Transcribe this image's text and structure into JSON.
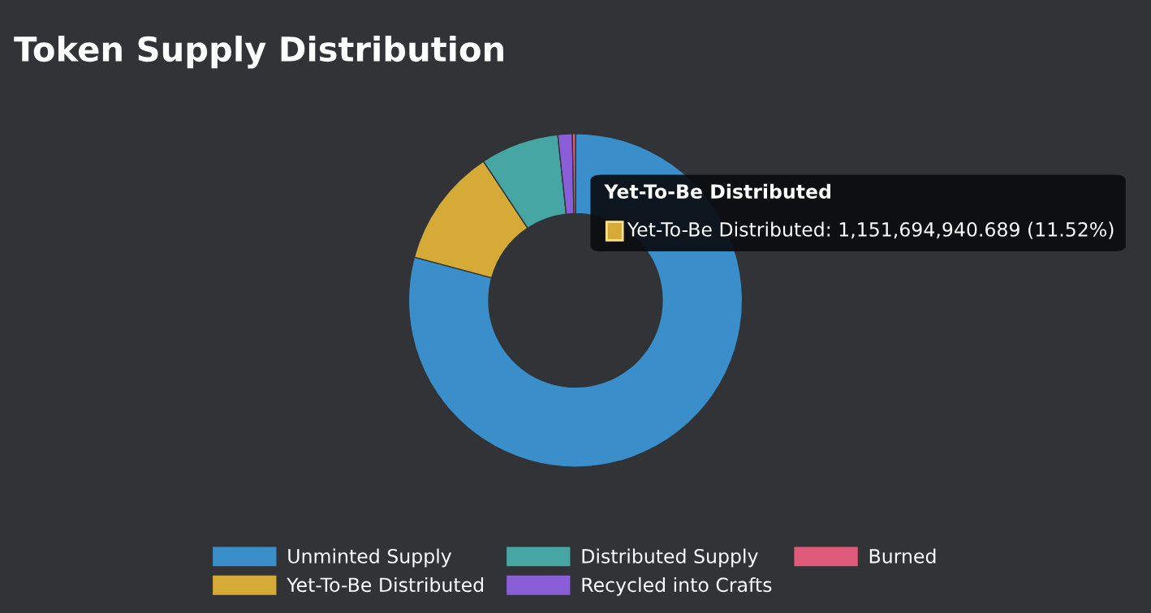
{
  "chart_data": {
    "type": "donut",
    "title": "Token Supply Distribution",
    "categories": [
      "Unminted Supply",
      "Yet-To-Be Distributed",
      "Distributed Supply",
      "Recycled into Crafts",
      "Burned"
    ],
    "values": [
      79.18,
      11.52,
      7.6,
      1.4,
      0.3
    ],
    "colors": [
      "#3a8fca",
      "#d6aa36",
      "#45a6a3",
      "#8a5ed6",
      "#e05a7a"
    ],
    "legend": "bottom",
    "annotations": [
      "Yet-To-Be Distributed",
      "Yet-To-Be Distributed: 1,151,694,940.689 (11.52%)"
    ]
  }
}
